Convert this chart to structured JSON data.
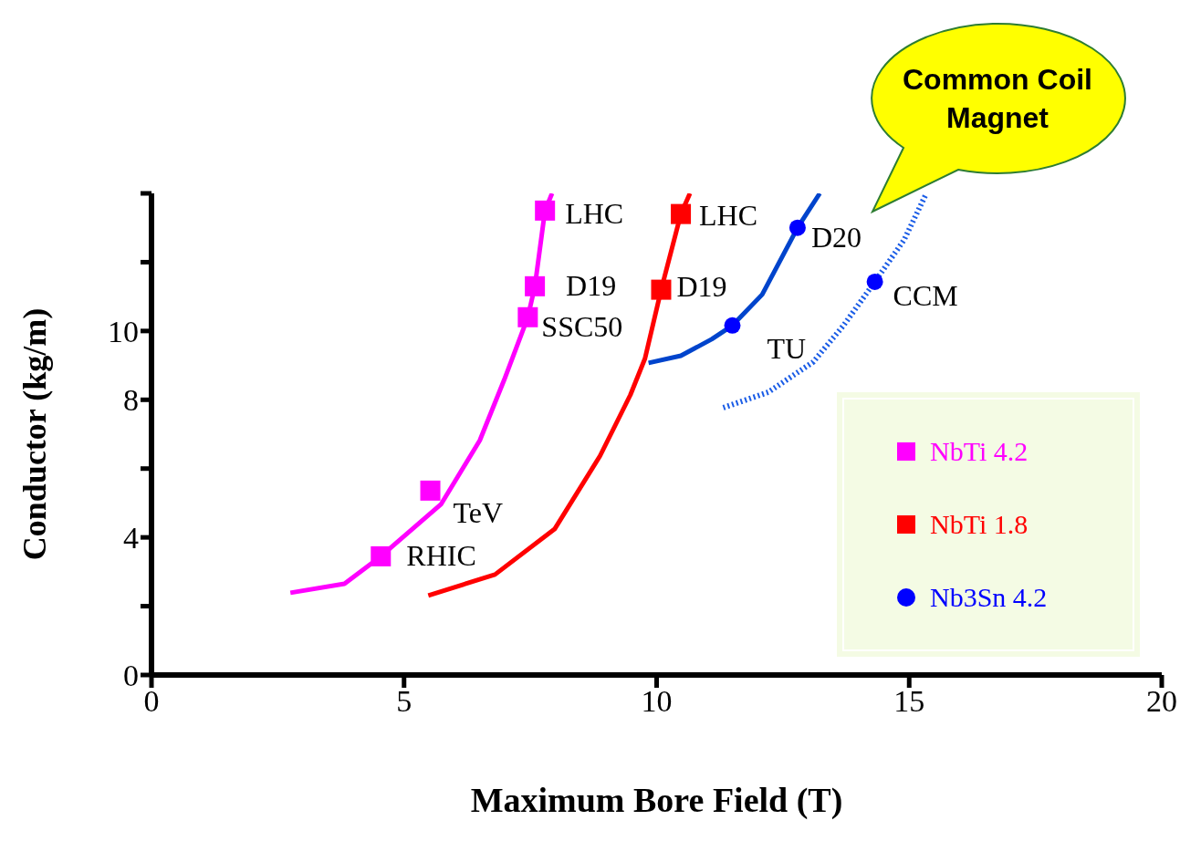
{
  "chart_data": {
    "type": "line",
    "xlabel": "Maximum Bore Field (T)",
    "ylabel": "Conductor (kg/m)",
    "xlim": [
      0,
      20
    ],
    "xticks": [
      0,
      5,
      10,
      15,
      20
    ],
    "ylim": [
      0,
      14
    ],
    "yticks": [
      0,
      {
        "value": 2,
        "label": null
      },
      4,
      {
        "value": 6,
        "label": null
      },
      8,
      10,
      {
        "value": 12,
        "label": null
      },
      {
        "value": 14,
        "label": null
      }
    ],
    "legend": "bottom right",
    "series": [
      {
        "line_style": "solid",
        "color": "#ff00ff",
        "x": [
          2.75,
          3.82,
          4.54,
          5.73,
          6.5,
          6.98,
          7.45,
          7.59,
          7.79,
          7.93
        ],
        "values": [
          2.39,
          2.65,
          3.45,
          4.96,
          6.82,
          8.57,
          10.4,
          11.3,
          13.5,
          14.0
        ]
      },
      {
        "line_style": "solid",
        "color": "#ff0000",
        "x": [
          5.48,
          6.8,
          7.98,
          8.88,
          9.48,
          9.77,
          10.09,
          10.48,
          10.66
        ],
        "values": [
          2.31,
          2.92,
          4.24,
          6.37,
          8.14,
          9.2,
          11.2,
          13.4,
          14.0
        ]
      },
      {
        "line_style": "solid",
        "color": "#0044cc",
        "x": [
          9.84,
          10.48,
          11.09,
          11.5,
          12.09,
          12.79,
          13.23
        ],
        "values": [
          9.07,
          9.28,
          9.76,
          10.16,
          11.06,
          13.0,
          14.0
        ]
      },
      {
        "line_style": "dotted",
        "color": "#1a5ce6",
        "x": [
          11.32,
          12.21,
          13.1,
          13.7,
          14.32,
          14.9,
          15.34
        ],
        "values": [
          7.77,
          8.22,
          9.1,
          10.16,
          11.43,
          12.65,
          14.0
        ]
      },
      {
        "type": "scatter",
        "name": "NbTi 4.2",
        "marker": "square",
        "color": "#ff00ff",
        "x": [
          4.54,
          5.52,
          7.45,
          7.59,
          7.79
        ],
        "values": [
          3.45,
          5.36,
          10.4,
          11.3,
          13.5
        ]
      },
      {
        "type": "scatter",
        "name": "NbTi 1.8",
        "marker": "square",
        "color": "#ff0000",
        "x": [
          10.09,
          10.48
        ],
        "values": [
          11.2,
          13.4
        ]
      },
      {
        "type": "scatter",
        "name": "Nb3Sn 4.2",
        "marker": "circle",
        "color": "#0000ff",
        "x": [
          11.5,
          12.79,
          14.32
        ],
        "values": [
          10.16,
          13.0,
          11.43
        ]
      }
    ],
    "annotations": [
      {
        "text": "LHC",
        "x": 7.79,
        "y": 13.5
      },
      {
        "text": "D19",
        "x": 7.59,
        "y": 11.3
      },
      {
        "text": "SSC50",
        "x": 7.45,
        "y": 10.4
      },
      {
        "text": "TeV",
        "x": 5.52,
        "y": 5.36
      },
      {
        "text": "RHIC",
        "x": 4.54,
        "y": 3.45
      },
      {
        "text": "LHC",
        "x": 10.48,
        "y": 13.4
      },
      {
        "text": "D19",
        "x": 10.09,
        "y": 11.2
      },
      {
        "text": "D20",
        "x": 12.79,
        "y": 13.0
      },
      {
        "text": "CCM",
        "x": 14.32,
        "y": 11.43
      },
      {
        "text": "TU",
        "x": 11.5,
        "y": 10.16
      },
      "Common Coil Magnet"
    ]
  }
}
